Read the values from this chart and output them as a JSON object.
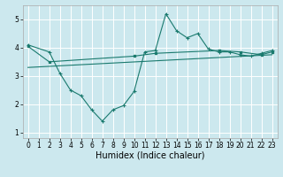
{
  "title": "",
  "xlabel": "Humidex (Indice chaleur)",
  "ylabel": "",
  "background_color": "#cce8ee",
  "grid_color": "#ffffff",
  "line_color": "#1a7a6e",
  "xlim": [
    -0.5,
    23.5
  ],
  "ylim": [
    0.8,
    5.5
  ],
  "xticks": [
    0,
    1,
    2,
    3,
    4,
    5,
    6,
    7,
    8,
    9,
    10,
    11,
    12,
    13,
    14,
    15,
    16,
    17,
    18,
    19,
    20,
    21,
    22,
    23
  ],
  "yticks": [
    1,
    2,
    3,
    4,
    5
  ],
  "line1_x": [
    0,
    2,
    3,
    4,
    5,
    6,
    7,
    8,
    9,
    10,
    11,
    12,
    13,
    14,
    15,
    16,
    17,
    18,
    19,
    20,
    21,
    22,
    23
  ],
  "line1_y": [
    4.1,
    3.85,
    3.1,
    2.5,
    2.3,
    1.8,
    1.4,
    1.8,
    1.95,
    2.45,
    3.85,
    3.9,
    5.2,
    4.6,
    4.35,
    4.5,
    3.95,
    3.85,
    3.85,
    3.75,
    3.7,
    3.8,
    3.9
  ],
  "line2_x": [
    0,
    2,
    10,
    12,
    18,
    20,
    22,
    23
  ],
  "line2_y": [
    4.05,
    3.5,
    3.7,
    3.8,
    3.9,
    3.85,
    3.75,
    3.85
  ],
  "line3_x": [
    0,
    23
  ],
  "line3_y": [
    3.3,
    3.75
  ],
  "tick_fontsize": 5.5,
  "xlabel_fontsize": 7
}
